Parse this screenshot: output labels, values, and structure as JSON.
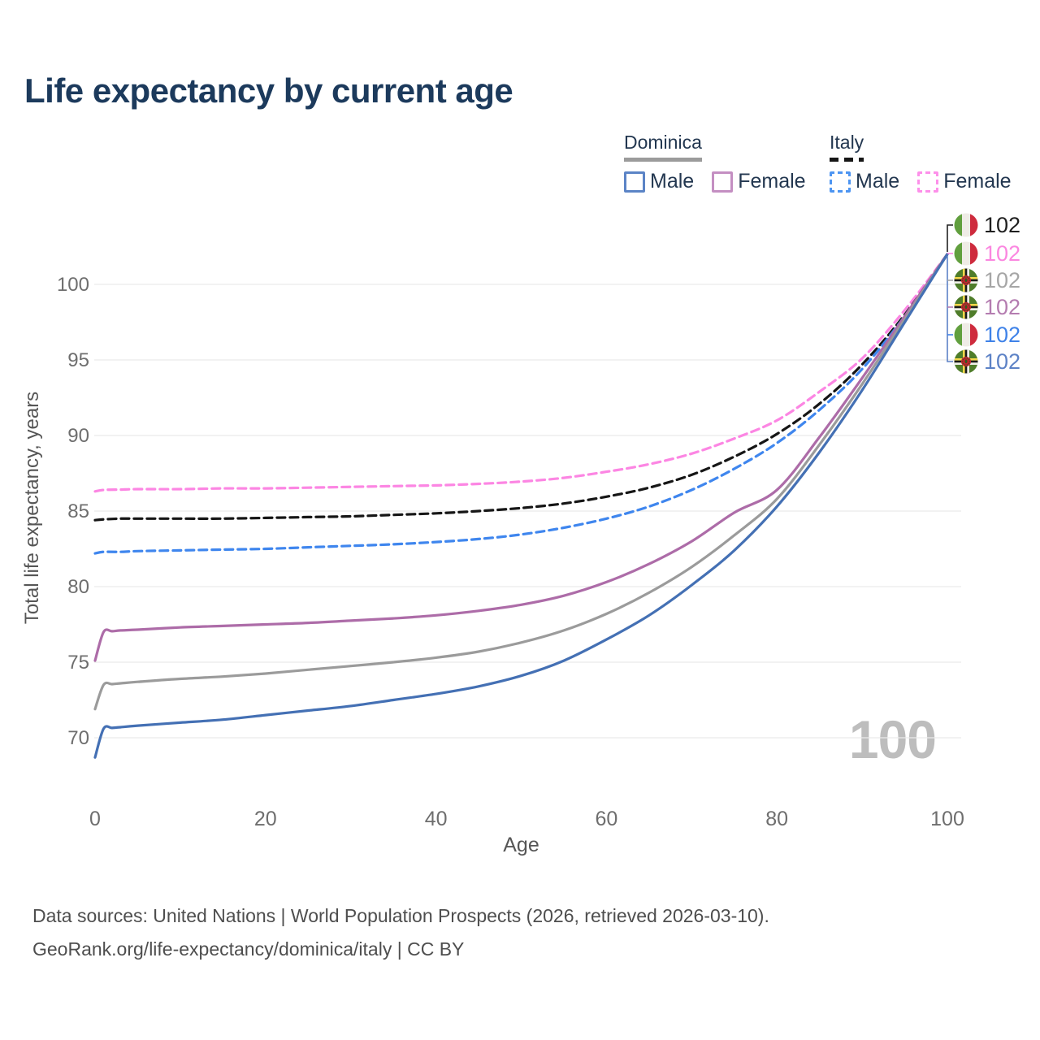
{
  "title": "Life expectancy by current age",
  "watermark": "100",
  "footer": {
    "line1": "Data sources: United Nations | World Population Prospects (2026, retrieved 2026-03-10).",
    "line2": "GeoRank.org/life-expectancy/dominica/italy | CC BY"
  },
  "legend": {
    "groups": [
      {
        "name": "Dominica",
        "style": "solid",
        "underline_color": "#9b9b9b",
        "items": [
          {
            "label": "Male",
            "color": "#5b84c6"
          },
          {
            "label": "Female",
            "color": "#c48fc2"
          }
        ]
      },
      {
        "name": "Italy",
        "style": "dashed",
        "underline_color": "#161616",
        "items": [
          {
            "label": "Male",
            "color": "#4d95f2"
          },
          {
            "label": "Female",
            "color": "#fd90ea"
          }
        ]
      }
    ]
  },
  "chart_data": {
    "type": "line",
    "xlabel": "Age",
    "ylabel": "Total life expectancy, years",
    "xlim": [
      0,
      100
    ],
    "ylim": [
      67,
      103
    ],
    "xticks": [
      0,
      20,
      40,
      60,
      80,
      100
    ],
    "yticks": [
      70,
      75,
      80,
      85,
      90,
      95,
      100
    ],
    "grid": "horizontal-only",
    "legend_position": "top-right",
    "series": [
      {
        "id": "italy-female",
        "country": "Italy",
        "sex": "Female",
        "style": "dashed",
        "color": "#fc86e3",
        "end_value": "102",
        "points": [
          [
            0,
            86.3
          ],
          [
            1,
            86.4
          ],
          [
            3,
            86.42
          ],
          [
            5,
            86.45
          ],
          [
            10,
            86.45
          ],
          [
            15,
            86.5
          ],
          [
            20,
            86.5
          ],
          [
            25,
            86.55
          ],
          [
            30,
            86.6
          ],
          [
            35,
            86.65
          ],
          [
            40,
            86.7
          ],
          [
            45,
            86.8
          ],
          [
            50,
            86.95
          ],
          [
            55,
            87.2
          ],
          [
            60,
            87.6
          ],
          [
            65,
            88.1
          ],
          [
            70,
            88.8
          ],
          [
            75,
            89.8
          ],
          [
            80,
            91.0
          ],
          [
            85,
            92.9
          ],
          [
            90,
            95.1
          ],
          [
            95,
            98.3
          ],
          [
            100,
            102
          ]
        ]
      },
      {
        "id": "italy-all",
        "country": "Italy",
        "sex": "Both sexes",
        "style": "dashed",
        "color": "#161616",
        "end_value": "102",
        "points": [
          [
            0,
            84.4
          ],
          [
            1,
            84.45
          ],
          [
            3,
            84.5
          ],
          [
            5,
            84.5
          ],
          [
            10,
            84.5
          ],
          [
            15,
            84.5
          ],
          [
            20,
            84.55
          ],
          [
            25,
            84.6
          ],
          [
            30,
            84.65
          ],
          [
            35,
            84.75
          ],
          [
            40,
            84.85
          ],
          [
            45,
            85.0
          ],
          [
            50,
            85.2
          ],
          [
            55,
            85.5
          ],
          [
            60,
            85.95
          ],
          [
            65,
            86.55
          ],
          [
            70,
            87.4
          ],
          [
            75,
            88.6
          ],
          [
            80,
            90.1
          ],
          [
            85,
            92.1
          ],
          [
            90,
            94.7
          ],
          [
            95,
            98.0
          ],
          [
            100,
            102
          ]
        ]
      },
      {
        "id": "italy-male",
        "country": "Italy",
        "sex": "Male",
        "style": "dashed",
        "color": "#3f86ee",
        "end_value": "102",
        "points": [
          [
            0,
            82.2
          ],
          [
            1,
            82.3
          ],
          [
            3,
            82.3
          ],
          [
            5,
            82.35
          ],
          [
            10,
            82.4
          ],
          [
            15,
            82.45
          ],
          [
            20,
            82.5
          ],
          [
            25,
            82.6
          ],
          [
            30,
            82.7
          ],
          [
            35,
            82.8
          ],
          [
            40,
            82.95
          ],
          [
            45,
            83.15
          ],
          [
            50,
            83.45
          ],
          [
            55,
            83.9
          ],
          [
            60,
            84.5
          ],
          [
            65,
            85.3
          ],
          [
            70,
            86.4
          ],
          [
            75,
            87.8
          ],
          [
            80,
            89.5
          ],
          [
            85,
            91.7
          ],
          [
            90,
            94.4
          ],
          [
            95,
            97.9
          ],
          [
            100,
            102
          ]
        ]
      },
      {
        "id": "dominica-female",
        "country": "Dominica",
        "sex": "Female",
        "style": "solid",
        "color": "#ad6ca8",
        "end_value": "102",
        "points": [
          [
            0,
            75.1
          ],
          [
            1,
            77.0
          ],
          [
            2,
            77.05
          ],
          [
            3,
            77.1
          ],
          [
            5,
            77.15
          ],
          [
            10,
            77.3
          ],
          [
            15,
            77.4
          ],
          [
            20,
            77.5
          ],
          [
            25,
            77.6
          ],
          [
            30,
            77.75
          ],
          [
            35,
            77.9
          ],
          [
            40,
            78.1
          ],
          [
            45,
            78.4
          ],
          [
            50,
            78.8
          ],
          [
            55,
            79.4
          ],
          [
            60,
            80.3
          ],
          [
            65,
            81.5
          ],
          [
            70,
            83.0
          ],
          [
            75,
            84.9
          ],
          [
            80,
            86.4
          ],
          [
            85,
            89.9
          ],
          [
            90,
            93.8
          ],
          [
            95,
            97.9
          ],
          [
            100,
            102
          ]
        ]
      },
      {
        "id": "dominica-all",
        "country": "Dominica",
        "sex": "Both sexes",
        "style": "solid",
        "color": "#9b9b9b",
        "end_value": "102",
        "points": [
          [
            0,
            71.9
          ],
          [
            1,
            73.5
          ],
          [
            2,
            73.55
          ],
          [
            3,
            73.6
          ],
          [
            5,
            73.7
          ],
          [
            10,
            73.9
          ],
          [
            15,
            74.05
          ],
          [
            20,
            74.25
          ],
          [
            25,
            74.5
          ],
          [
            30,
            74.75
          ],
          [
            35,
            75.0
          ],
          [
            40,
            75.3
          ],
          [
            45,
            75.7
          ],
          [
            50,
            76.3
          ],
          [
            55,
            77.1
          ],
          [
            60,
            78.2
          ],
          [
            65,
            79.6
          ],
          [
            70,
            81.3
          ],
          [
            75,
            83.4
          ],
          [
            80,
            85.8
          ],
          [
            85,
            89.4
          ],
          [
            90,
            93.4
          ],
          [
            95,
            97.7
          ],
          [
            100,
            102
          ]
        ]
      },
      {
        "id": "dominica-male",
        "country": "Dominica",
        "sex": "Male",
        "style": "solid",
        "color": "#4470b4",
        "end_value": "102",
        "points": [
          [
            0,
            68.7
          ],
          [
            1,
            70.6
          ],
          [
            2,
            70.65
          ],
          [
            3,
            70.7
          ],
          [
            5,
            70.8
          ],
          [
            10,
            71.0
          ],
          [
            15,
            71.2
          ],
          [
            20,
            71.5
          ],
          [
            25,
            71.8
          ],
          [
            30,
            72.1
          ],
          [
            35,
            72.5
          ],
          [
            40,
            72.9
          ],
          [
            45,
            73.4
          ],
          [
            50,
            74.1
          ],
          [
            55,
            75.1
          ],
          [
            60,
            76.5
          ],
          [
            65,
            78.1
          ],
          [
            70,
            80.1
          ],
          [
            75,
            82.4
          ],
          [
            80,
            85.3
          ],
          [
            85,
            88.9
          ],
          [
            90,
            93.0
          ],
          [
            95,
            97.5
          ],
          [
            100,
            102
          ]
        ]
      }
    ],
    "end_labels": [
      {
        "flag": "italy",
        "series": "italy-all",
        "value": "102",
        "color": "#1f1f1f"
      },
      {
        "flag": "italy",
        "series": "italy-female",
        "value": "102",
        "color": "#fb87e0"
      },
      {
        "flag": "dominica",
        "series": "dominica-all",
        "value": "102",
        "color": "#a6a6a6"
      },
      {
        "flag": "dominica",
        "series": "dominica-female",
        "value": "102",
        "color": "#b47cb0"
      },
      {
        "flag": "italy",
        "series": "italy-male",
        "value": "102",
        "color": "#3f82e8"
      },
      {
        "flag": "dominica",
        "series": "dominica-male",
        "value": "102",
        "color": "#5d82c6"
      }
    ]
  }
}
